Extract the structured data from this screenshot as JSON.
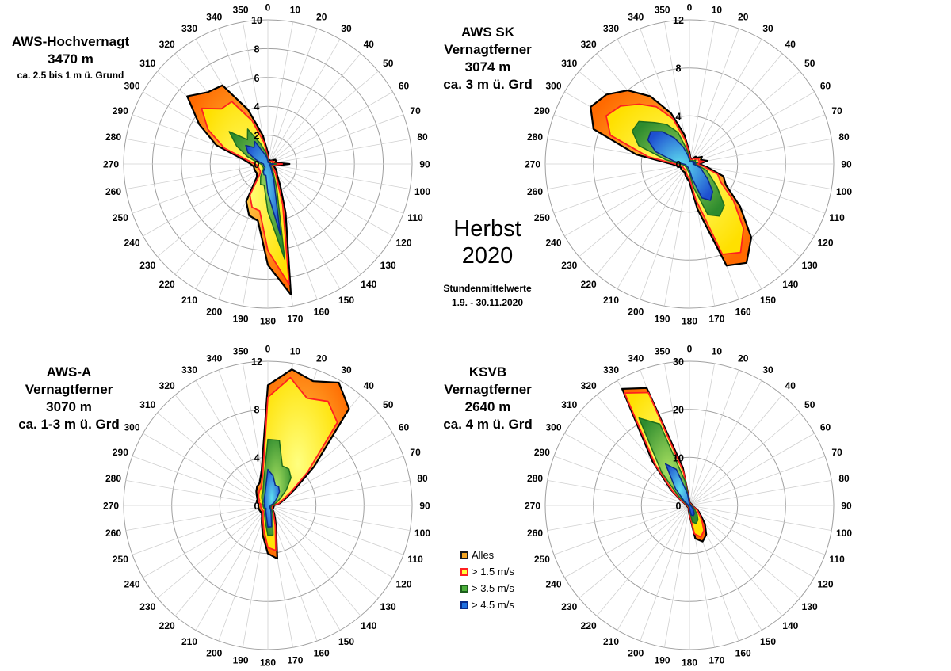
{
  "season": {
    "line1": "Herbst",
    "line2": "2020"
  },
  "period": {
    "line1": "Stundenmittelwerte",
    "line2": "1.9. - 30.11.2020"
  },
  "legend": [
    {
      "label": "Alles",
      "fill": "#f5a623",
      "stroke": "#1a1a1a"
    },
    {
      "label": "> 1.5 m/s",
      "fill": "#ffff3c",
      "stroke": "#ff2020"
    },
    {
      "label": "> 3.5 m/s",
      "fill": "#4caf3a",
      "stroke": "#1c5e1c"
    },
    {
      "label": "> 4.5 m/s",
      "fill": "#1e6fe0",
      "stroke": "#0a2a8a"
    }
  ],
  "colors": {
    "alles_fill": "#f5a623",
    "alles_stroke": "#000000",
    "s15_fill": "#ffff3c",
    "s15_stroke": "#ff2020",
    "s35_fill": "#5cb83a",
    "s35_stroke": "#1e6e1e",
    "s45_fill": "#2a86e6",
    "s45_stroke": "#0a2a8a",
    "grid": "#a0a0a0"
  },
  "chart_data": [
    {
      "type": "radar",
      "station": {
        "line1": "AWS-Hochvernagt",
        "line2": "3470 m",
        "line3": "ca. 2.5 bis 1 m ü. Grund"
      },
      "directions": [
        0,
        10,
        20,
        30,
        40,
        50,
        60,
        70,
        80,
        90,
        100,
        110,
        120,
        130,
        140,
        150,
        160,
        170,
        180,
        190,
        200,
        210,
        220,
        230,
        240,
        250,
        260,
        270,
        280,
        290,
        300,
        310,
        320,
        330,
        340,
        350
      ],
      "rmax": 10,
      "radial_ticks": [
        0,
        2,
        4,
        6,
        8,
        10
      ],
      "series": [
        {
          "name": "Alles",
          "values": [
            0.8,
            0.3,
            0.3,
            0.3,
            0.3,
            0.4,
            0.6,
            0.6,
            0.5,
            1.5,
            0.6,
            0.4,
            0.6,
            0.8,
            1.0,
            1.7,
            3.6,
            9.2,
            7.0,
            4.0,
            3.8,
            3.0,
            1.2,
            1.0,
            1.0,
            1.0,
            1.0,
            1.2,
            1.7,
            3.8,
            5.5,
            7.3,
            6.5,
            6.3,
            4.0,
            2.0
          ]
        },
        {
          "name": "> 1.5 m/s",
          "values": [
            0.5,
            0.2,
            0.2,
            0.2,
            0.2,
            0.3,
            0.4,
            0.4,
            0.3,
            1.0,
            0.4,
            0.3,
            0.4,
            0.5,
            0.8,
            1.3,
            3.0,
            8.5,
            6.0,
            3.3,
            3.2,
            2.5,
            0.8,
            0.7,
            0.7,
            0.7,
            0.7,
            0.9,
            1.4,
            3.2,
            4.8,
            6.0,
            5.0,
            5.0,
            3.2,
            1.5
          ]
        },
        {
          "name": "> 3.5 m/s",
          "values": [
            0.3,
            0.1,
            0.1,
            0.1,
            0.1,
            0.2,
            0.2,
            0.2,
            0.2,
            0.6,
            0.3,
            0.2,
            0.2,
            0.3,
            0.5,
            0.8,
            1.8,
            6.7,
            3.3,
            1.5,
            1.5,
            1.0,
            0.5,
            0.4,
            0.4,
            0.4,
            0.4,
            0.5,
            0.8,
            1.5,
            2.5,
            3.5,
            2.2,
            2.8,
            1.5,
            0.8
          ]
        },
        {
          "name": "> 4.5 m/s",
          "values": [
            0.2,
            0.1,
            0.1,
            0.1,
            0.1,
            0.1,
            0.1,
            0.1,
            0.1,
            0.4,
            0.2,
            0.1,
            0.1,
            0.2,
            0.3,
            0.5,
            1.2,
            5.0,
            2.0,
            0.8,
            0.8,
            0.6,
            0.3,
            0.3,
            0.3,
            0.3,
            0.3,
            0.3,
            0.5,
            0.9,
            1.6,
            2.0,
            1.5,
            1.8,
            0.8,
            0.5
          ]
        }
      ]
    },
    {
      "type": "radar",
      "station": {
        "line1": "AWS SK",
        "line2": "Vernagtferner",
        "line3": "3074 m",
        "line4": "ca. 3 m ü. Grd"
      },
      "directions": [
        0,
        10,
        20,
        30,
        40,
        50,
        60,
        70,
        80,
        90,
        100,
        110,
        120,
        130,
        140,
        150,
        160,
        170,
        180,
        190,
        200,
        210,
        220,
        230,
        240,
        250,
        260,
        270,
        280,
        290,
        300,
        310,
        320,
        330,
        340,
        350
      ],
      "rmax": 12,
      "radial_ticks": [
        0,
        4,
        8,
        12
      ],
      "series": [
        {
          "name": "Alles",
          "values": [
            1.0,
            0.5,
            0.5,
            0.5,
            0.8,
            0.8,
            1.2,
            1.0,
            1.5,
            0.8,
            1.5,
            3.0,
            3.5,
            5.5,
            8.0,
            9.5,
            9.0,
            3.8,
            1.5,
            1.2,
            1.0,
            0.8,
            0.8,
            0.8,
            0.8,
            0.8,
            1.0,
            1.5,
            4.5,
            8.5,
            9.5,
            9.0,
            8.0,
            6.5,
            4.5,
            2.5
          ]
        },
        {
          "name": "> 1.5 m/s",
          "values": [
            0.8,
            0.4,
            0.4,
            0.4,
            0.6,
            0.6,
            0.9,
            0.8,
            1.2,
            0.6,
            1.2,
            2.5,
            3.0,
            4.8,
            7.0,
            8.5,
            8.0,
            3.0,
            1.2,
            1.0,
            0.8,
            0.6,
            0.6,
            0.6,
            0.6,
            0.6,
            0.8,
            1.2,
            3.5,
            7.0,
            8.0,
            7.5,
            6.5,
            5.5,
            4.0,
            2.0
          ]
        },
        {
          "name": "> 3.5 m/s",
          "values": [
            0.5,
            0.3,
            0.3,
            0.3,
            0.4,
            0.4,
            0.6,
            0.5,
            0.7,
            0.4,
            0.7,
            1.5,
            2.0,
            3.0,
            4.5,
            5.0,
            4.5,
            2.0,
            0.8,
            0.6,
            0.5,
            0.4,
            0.4,
            0.4,
            0.4,
            0.4,
            0.5,
            0.8,
            2.0,
            4.5,
            5.5,
            5.5,
            4.5,
            3.8,
            2.8,
            1.2
          ]
        },
        {
          "name": "> 4.5 m/s",
          "values": [
            0.3,
            0.2,
            0.2,
            0.2,
            0.3,
            0.3,
            0.4,
            0.3,
            0.5,
            0.3,
            0.5,
            1.0,
            1.3,
            2.0,
            3.0,
            3.5,
            3.0,
            1.2,
            0.5,
            0.4,
            0.3,
            0.3,
            0.3,
            0.3,
            0.3,
            0.3,
            0.3,
            0.5,
            1.3,
            3.0,
            4.0,
            4.2,
            3.5,
            2.5,
            1.5,
            0.7
          ]
        }
      ]
    },
    {
      "type": "radar",
      "station": {
        "line1": "AWS-A",
        "line2": "Vernagtferner",
        "line3": "3070 m",
        "line4": "ca. 1-3 m ü. Grd"
      },
      "directions": [
        0,
        10,
        20,
        30,
        40,
        50,
        60,
        70,
        80,
        90,
        100,
        110,
        120,
        130,
        140,
        150,
        160,
        170,
        180,
        190,
        200,
        210,
        220,
        230,
        240,
        250,
        260,
        270,
        280,
        290,
        300,
        310,
        320,
        330,
        340,
        350
      ],
      "rmax": 12,
      "radial_ticks": [
        0,
        4,
        8,
        12
      ],
      "series": [
        {
          "name": "Alles",
          "values": [
            10.0,
            11.5,
            11.0,
            11.8,
            10.5,
            5.0,
            2.5,
            1.5,
            1.0,
            0.5,
            0.5,
            0.5,
            0.5,
            0.5,
            0.8,
            1.2,
            2.0,
            4.5,
            4.0,
            2.5,
            1.5,
            1.0,
            0.8,
            0.8,
            0.8,
            0.8,
            0.8,
            0.8,
            0.8,
            1.0,
            1.0,
            1.2,
            1.5,
            1.8,
            2.0,
            3.0
          ]
        },
        {
          "name": "> 1.5 m/s",
          "values": [
            9.0,
            10.8,
            9.5,
            10.0,
            9.0,
            4.3,
            2.2,
            1.3,
            0.9,
            0.4,
            0.4,
            0.4,
            0.4,
            0.4,
            0.7,
            1.0,
            1.8,
            3.8,
            3.5,
            2.0,
            1.2,
            0.8,
            0.6,
            0.6,
            0.6,
            0.6,
            0.6,
            0.6,
            0.6,
            0.8,
            0.8,
            1.0,
            1.2,
            1.4,
            1.6,
            2.5
          ]
        },
        {
          "name": "> 3.5 m/s",
          "values": [
            5.5,
            5.5,
            3.5,
            3.5,
            3.0,
            2.0,
            1.2,
            0.8,
            0.5,
            0.3,
            0.3,
            0.3,
            0.3,
            0.3,
            0.5,
            0.8,
            1.2,
            2.5,
            2.5,
            1.3,
            0.8,
            0.5,
            0.4,
            0.4,
            0.4,
            0.4,
            0.4,
            0.4,
            0.4,
            0.5,
            0.5,
            0.6,
            0.8,
            1.0,
            1.2,
            2.0
          ]
        },
        {
          "name": "> 4.5 m/s",
          "values": [
            3.0,
            2.5,
            1.8,
            1.8,
            1.5,
            1.0,
            0.7,
            0.5,
            0.3,
            0.2,
            0.2,
            0.2,
            0.2,
            0.2,
            0.3,
            0.5,
            0.8,
            1.8,
            1.8,
            0.8,
            0.5,
            0.3,
            0.3,
            0.3,
            0.3,
            0.3,
            0.3,
            0.3,
            0.3,
            0.3,
            0.3,
            0.4,
            0.5,
            0.6,
            0.8,
            1.2
          ]
        }
      ]
    },
    {
      "type": "radar",
      "station": {
        "line1": "KSVB",
        "line2": "Vernagtferner",
        "line3": "2640 m",
        "line4": "ca. 4 m ü. Grd"
      },
      "directions": [
        0,
        10,
        20,
        30,
        40,
        50,
        60,
        70,
        80,
        90,
        100,
        110,
        120,
        130,
        140,
        150,
        160,
        170,
        180,
        190,
        200,
        210,
        220,
        230,
        240,
        250,
        260,
        270,
        280,
        290,
        300,
        310,
        320,
        330,
        340,
        350
      ],
      "rmax": 30,
      "radial_ticks": [
        0,
        10,
        20,
        30
      ],
      "series": [
        {
          "name": "Alles",
          "values": [
            1.0,
            0.5,
            0.5,
            0.5,
            0.5,
            0.5,
            0.5,
            0.5,
            0.5,
            0.5,
            0.5,
            1.0,
            2.0,
            3.0,
            5.0,
            7.0,
            8.0,
            7.0,
            2.0,
            1.0,
            0.5,
            0.5,
            0.5,
            0.5,
            0.5,
            0.5,
            0.5,
            0.5,
            0.8,
            1.0,
            2.0,
            5.0,
            12.0,
            28.0,
            26.0,
            8.0
          ]
        },
        {
          "name": "> 1.5 m/s",
          "values": [
            0.8,
            0.4,
            0.4,
            0.4,
            0.4,
            0.4,
            0.4,
            0.4,
            0.4,
            0.4,
            0.4,
            0.8,
            1.8,
            2.5,
            4.0,
            6.0,
            7.0,
            6.0,
            1.8,
            0.8,
            0.4,
            0.4,
            0.4,
            0.4,
            0.4,
            0.4,
            0.4,
            0.4,
            0.6,
            0.8,
            1.8,
            4.5,
            11.0,
            27.0,
            25.0,
            7.0
          ]
        },
        {
          "name": "> 3.5 m/s",
          "values": [
            0.5,
            0.3,
            0.3,
            0.3,
            0.3,
            0.3,
            0.3,
            0.3,
            0.3,
            0.3,
            0.3,
            0.5,
            1.0,
            1.5,
            2.5,
            3.5,
            4.0,
            3.5,
            1.0,
            0.5,
            0.3,
            0.3,
            0.3,
            0.3,
            0.3,
            0.3,
            0.3,
            0.3,
            0.4,
            0.5,
            1.0,
            3.0,
            9.0,
            21.0,
            18.0,
            5.0
          ]
        },
        {
          "name": "> 4.5 m/s",
          "values": [
            0.3,
            0.2,
            0.2,
            0.2,
            0.2,
            0.2,
            0.2,
            0.2,
            0.2,
            0.2,
            0.2,
            0.3,
            0.5,
            0.8,
            1.3,
            2.0,
            2.3,
            2.0,
            0.5,
            0.3,
            0.2,
            0.2,
            0.2,
            0.2,
            0.2,
            0.2,
            0.2,
            0.2,
            0.3,
            0.3,
            0.5,
            1.5,
            4.5,
            10.0,
            8.0,
            2.5
          ]
        }
      ]
    }
  ]
}
